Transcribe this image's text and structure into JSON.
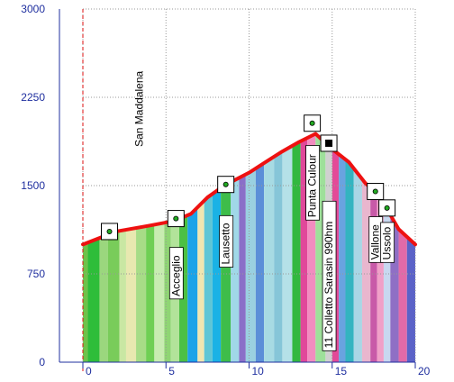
{
  "chart_data": {
    "type": "area",
    "y_ticks": [
      "3000",
      "2250",
      "1500",
      "750",
      "0"
    ],
    "x_ticks": [
      "0",
      "5",
      "10",
      "15",
      "20"
    ],
    "xlim": [
      0,
      20
    ],
    "ylim": [
      0,
      3000
    ],
    "grid": true,
    "profile": [
      {
        "x": 0,
        "y": 1000
      },
      {
        "x": 2,
        "y": 1110
      },
      {
        "x": 4,
        "y": 1160
      },
      {
        "x": 5.5,
        "y": 1200
      },
      {
        "x": 6.5,
        "y": 1260
      },
      {
        "x": 7.5,
        "y": 1400
      },
      {
        "x": 8.5,
        "y": 1500
      },
      {
        "x": 10,
        "y": 1610
      },
      {
        "x": 11,
        "y": 1700
      },
      {
        "x": 12,
        "y": 1790
      },
      {
        "x": 13,
        "y": 1870
      },
      {
        "x": 14,
        "y": 1940
      },
      {
        "x": 15,
        "y": 1810
      },
      {
        "x": 16,
        "y": 1700
      },
      {
        "x": 17,
        "y": 1520
      },
      {
        "x": 17.8,
        "y": 1420
      },
      {
        "x": 18.3,
        "y": 1300
      },
      {
        "x": 19,
        "y": 1130
      },
      {
        "x": 20,
        "y": 1000
      }
    ],
    "waypoints": [
      {
        "label": "San Maddalena",
        "x": 0,
        "marker_x": 1.6,
        "marker_y": 1110,
        "marker": "dot",
        "label_y": 1830,
        "start_line": true
      },
      {
        "label": "Acceglio",
        "x": 5.6,
        "marker_x": 5.6,
        "marker_y": 1220,
        "marker": "dot",
        "label_y": 560
      },
      {
        "label": "Lausetto",
        "x": 8.6,
        "marker_x": 8.6,
        "marker_y": 1510,
        "marker": "dot",
        "label_y": 830
      },
      {
        "label": "Punta Culour",
        "x": 13.8,
        "marker_x": 13.8,
        "marker_y": 2030,
        "marker": "dot",
        "label_y": 1230
      },
      {
        "label": "11 Colletto Sarasin 990hm",
        "x": 14.8,
        "marker_x": 14.8,
        "marker_y": 1860,
        "marker": "square",
        "label_y": 120
      },
      {
        "label": "Vallone",
        "x": 17.6,
        "marker_x": 17.6,
        "marker_y": 1450,
        "marker": "dot",
        "label_y": 870
      },
      {
        "label": "Ussolo",
        "x": 18.3,
        "marker_x": 18.3,
        "marker_y": 1310,
        "marker": "dot",
        "label_y": 870
      }
    ],
    "stripes": [
      [
        0.0,
        0.3,
        "#6ec24a"
      ],
      [
        0.3,
        1.0,
        "#2ebd3a"
      ],
      [
        1.0,
        1.5,
        "#9bd77e"
      ],
      [
        1.5,
        2.2,
        "#79cc5a"
      ],
      [
        2.2,
        2.6,
        "#c9e7a3"
      ],
      [
        2.6,
        3.2,
        "#e8e8b0"
      ],
      [
        3.2,
        3.8,
        "#a7dc87"
      ],
      [
        3.8,
        4.3,
        "#6fcf54"
      ],
      [
        4.3,
        4.9,
        "#c8ecb1"
      ],
      [
        4.9,
        5.3,
        "#8fd574"
      ],
      [
        5.3,
        5.8,
        "#b2e39a"
      ],
      [
        5.8,
        6.3,
        "#4cc044"
      ],
      [
        6.3,
        6.9,
        "#1ba3e8"
      ],
      [
        6.9,
        7.3,
        "#f0e6b0"
      ],
      [
        7.3,
        7.8,
        "#5ec6d6"
      ],
      [
        7.8,
        8.3,
        "#1ab2e5"
      ],
      [
        8.3,
        8.9,
        "#3ebd4a"
      ],
      [
        8.9,
        9.4,
        "#a0d8e8"
      ],
      [
        9.4,
        9.8,
        "#8a6fc8"
      ],
      [
        9.8,
        10.4,
        "#9ad0e0"
      ],
      [
        10.4,
        10.9,
        "#5b8fd8"
      ],
      [
        10.9,
        11.5,
        "#a7dbe3"
      ],
      [
        11.5,
        12.0,
        "#86c6d8"
      ],
      [
        12.0,
        12.6,
        "#b5e1e8"
      ],
      [
        12.6,
        13.1,
        "#33b840"
      ],
      [
        13.1,
        13.5,
        "#e0489a"
      ],
      [
        13.5,
        14.0,
        "#f28cc0"
      ],
      [
        14.0,
        14.6,
        "#9ee09a"
      ],
      [
        14.6,
        15.0,
        "#d0d0d0"
      ],
      [
        15.0,
        15.4,
        "#e34a98"
      ],
      [
        15.4,
        15.8,
        "#6aa3e0"
      ],
      [
        15.8,
        16.3,
        "#34b4c0"
      ],
      [
        16.3,
        16.8,
        "#a9d6e5"
      ],
      [
        16.8,
        17.3,
        "#e9b6ce"
      ],
      [
        17.3,
        17.7,
        "#c85aa8"
      ],
      [
        17.7,
        18.1,
        "#f0a0c8"
      ],
      [
        18.1,
        18.5,
        "#c8d8f0"
      ],
      [
        18.5,
        19.0,
        "#8f6fc5"
      ],
      [
        19.0,
        19.5,
        "#e26aa8"
      ],
      [
        19.5,
        20.0,
        "#5b62c8"
      ]
    ],
    "colors": {
      "profile_line": "#ee1111",
      "start_line": "#dd1111",
      "grid": "#999999",
      "axis": "#1f2f9f",
      "tick_text": "#1f2f9f"
    }
  }
}
